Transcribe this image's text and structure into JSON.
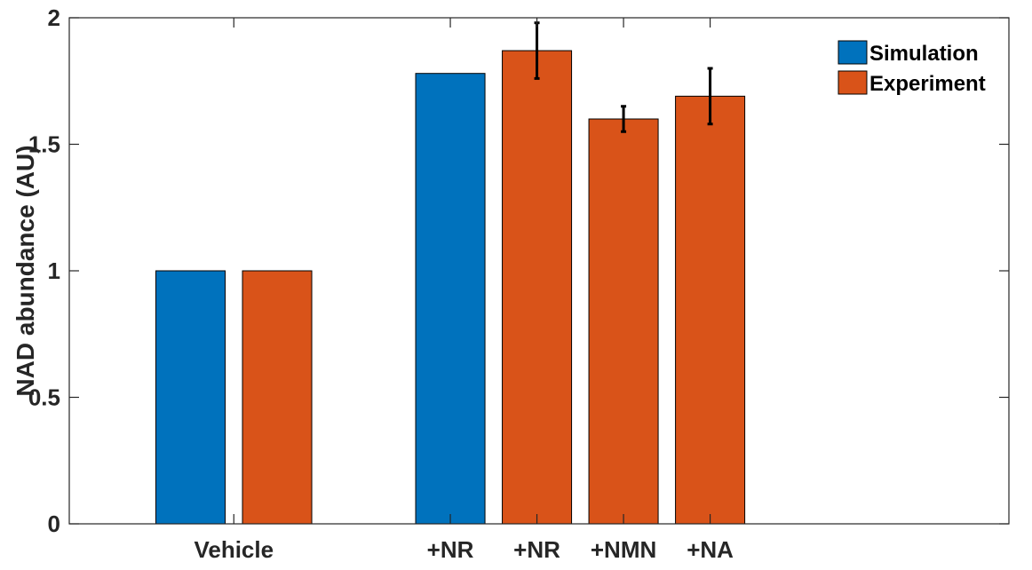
{
  "chart_data": {
    "type": "bar",
    "title": "",
    "xlabel": "",
    "ylabel": "NAD abundance (AU)",
    "ylim": [
      0,
      2
    ],
    "yticks": [
      0,
      0.5,
      1,
      1.5,
      2
    ],
    "ytick_labels": [
      "0",
      "0.5",
      "1",
      "1.5",
      "2"
    ],
    "grid": false,
    "legend_position": "top-right",
    "series": [
      {
        "name": "Simulation",
        "color": "#0072BD"
      },
      {
        "name": "Experiment",
        "color": "#D95319"
      }
    ],
    "bars": [
      {
        "label": "",
        "series": 0,
        "value": 1.0
      },
      {
        "label": "",
        "series": 1,
        "value": 1.0
      },
      {
        "label": "+NR",
        "series": 0,
        "value": 1.78
      },
      {
        "label": "+NR",
        "series": 1,
        "value": 1.87,
        "err": 0.11
      },
      {
        "label": "+NMN",
        "series": 1,
        "value": 1.6,
        "err": 0.05
      },
      {
        "label": "+NA",
        "series": 1,
        "value": 1.69,
        "err": 0.11
      }
    ],
    "group_labels": [
      {
        "label": "Vehicle",
        "bars": [
          0,
          1
        ]
      }
    ]
  }
}
